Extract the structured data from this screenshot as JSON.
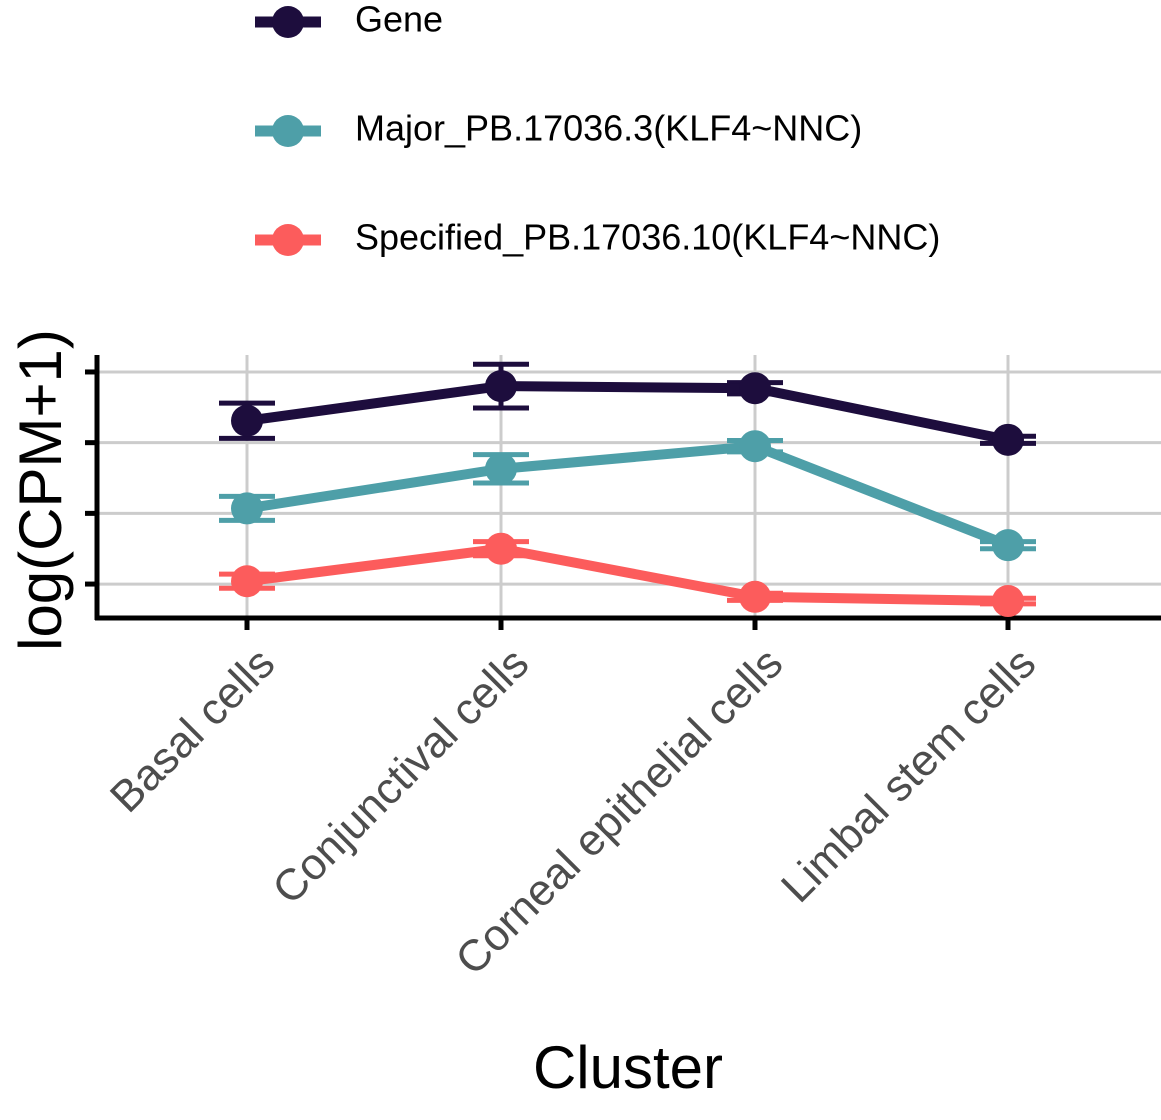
{
  "chart_data": {
    "type": "line",
    "x_label": "Cluster",
    "y_label": "log(CPM+1)",
    "categories": [
      "Basal cells",
      "Conjunctival cells",
      "Corneal epithelial cells",
      "Limbal stem cells"
    ],
    "series": [
      {
        "name": "Gene",
        "color": "#1d0d3d",
        "values": [
          3.31,
          3.8,
          3.77,
          3.04
        ],
        "errors": [
          0.25,
          0.31,
          0.08,
          0.05
        ]
      },
      {
        "name": "Major_PB.17036.3(KLF4~NNC)",
        "color": "#4e9fa8",
        "values": [
          2.07,
          2.63,
          2.95,
          1.55
        ],
        "errors": [
          0.17,
          0.2,
          0.08,
          0.05
        ]
      },
      {
        "name": "Specified_PB.17036.10(KLF4~NNC)",
        "color": "#fc5c5c",
        "values": [
          1.04,
          1.5,
          0.82,
          0.76
        ],
        "errors": [
          0.1,
          0.1,
          0.05,
          0.04
        ]
      }
    ],
    "ylim": [
      0.52,
      4.24
    ],
    "yticks": [
      1,
      2,
      3,
      4
    ],
    "grid": true
  }
}
